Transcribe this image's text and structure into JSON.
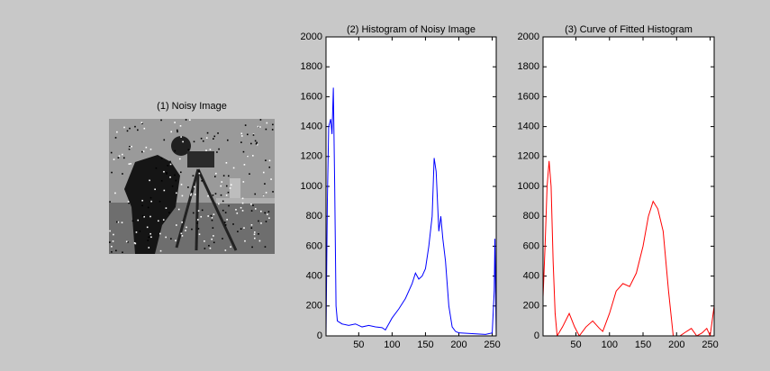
{
  "chart_data": [
    {
      "type": "image",
      "title": "(1) Noisy Image"
    },
    {
      "type": "line",
      "title": "(2) Histogram of Noisy Image",
      "color": "#0000ff",
      "x": [
        1,
        3,
        5,
        8,
        10,
        12,
        14,
        16,
        18,
        25,
        35,
        45,
        55,
        65,
        75,
        85,
        90,
        95,
        100,
        110,
        120,
        130,
        135,
        140,
        145,
        150,
        155,
        160,
        163,
        166,
        170,
        173,
        176,
        180,
        185,
        190,
        195,
        200,
        220,
        240,
        250,
        253,
        254,
        255,
        256
      ],
      "values": [
        0,
        900,
        1400,
        1450,
        1350,
        1660,
        1000,
        200,
        100,
        80,
        70,
        80,
        60,
        70,
        60,
        55,
        40,
        80,
        120,
        180,
        250,
        350,
        420,
        380,
        400,
        450,
        600,
        800,
        1190,
        1100,
        700,
        800,
        650,
        500,
        200,
        60,
        30,
        20,
        15,
        10,
        20,
        300,
        650,
        320,
        0
      ],
      "xlim": [
        1,
        256
      ],
      "ylim": [
        0,
        2000
      ],
      "xticks": [
        50,
        100,
        150,
        200,
        250
      ],
      "yticks": [
        0,
        200,
        400,
        600,
        800,
        1000,
        1200,
        1400,
        1600,
        1800,
        2000
      ]
    },
    {
      "type": "line",
      "title": "(3) Curve of Fitted Histogram",
      "color": "#ff0000",
      "x": [
        1,
        4,
        7,
        10,
        13,
        16,
        19,
        22,
        30,
        40,
        48,
        55,
        65,
        75,
        85,
        90,
        100,
        110,
        120,
        130,
        140,
        150,
        158,
        165,
        172,
        180,
        188,
        195,
        205,
        215,
        222,
        230,
        238,
        245,
        250,
        256
      ],
      "values": [
        260,
        600,
        1000,
        1170,
        1000,
        500,
        150,
        0,
        60,
        150,
        60,
        0,
        60,
        100,
        50,
        30,
        150,
        300,
        350,
        330,
        420,
        600,
        800,
        900,
        850,
        700,
        300,
        0,
        0,
        30,
        50,
        0,
        20,
        50,
        0,
        200
      ],
      "xlim": [
        1,
        256
      ],
      "ylim": [
        0,
        2000
      ],
      "xticks": [
        50,
        100,
        150,
        200,
        250
      ],
      "yticks": [
        0,
        200,
        400,
        600,
        800,
        1000,
        1200,
        1400,
        1600,
        1800,
        2000
      ]
    }
  ]
}
